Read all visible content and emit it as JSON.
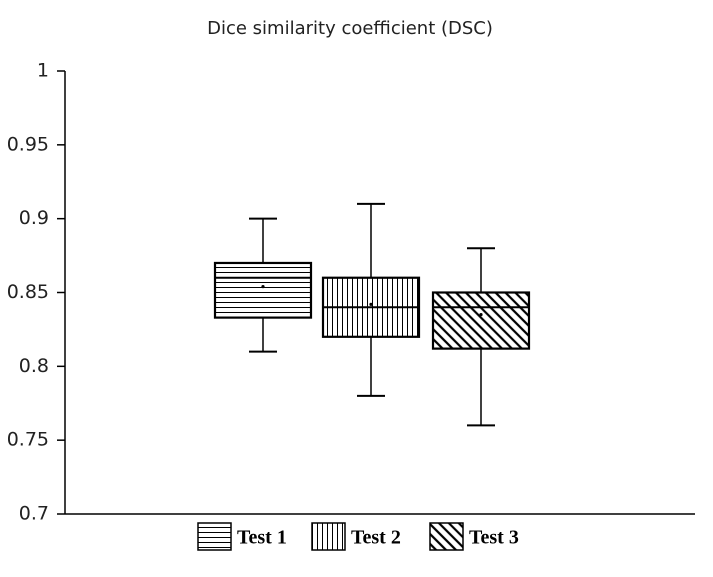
{
  "chart_data": {
    "type": "box",
    "title": "Dice similarity coefficient (DSC)",
    "series": [
      {
        "name": "Test 1",
        "pattern": "horizontal",
        "color": "#000000",
        "whisker_low": 0.81,
        "q1": 0.833,
        "median": 0.86,
        "q3": 0.87,
        "whisker_high": 0.9,
        "mean": 0.854
      },
      {
        "name": "Test 2",
        "pattern": "vertical",
        "color": "#000000",
        "whisker_low": 0.78,
        "q1": 0.82,
        "median": 0.84,
        "q3": 0.86,
        "whisker_high": 0.91,
        "mean": 0.842
      },
      {
        "name": "Test 3",
        "pattern": "diagonal",
        "color": "#000000",
        "whisker_low": 0.76,
        "q1": 0.812,
        "median": 0.84,
        "q3": 0.85,
        "whisker_high": 0.88,
        "mean": 0.835
      }
    ],
    "ylim": [
      0.7,
      1
    ],
    "yticks": [
      0.7,
      0.75,
      0.8,
      0.85,
      0.9,
      0.95,
      1
    ],
    "legend": "bottom"
  }
}
